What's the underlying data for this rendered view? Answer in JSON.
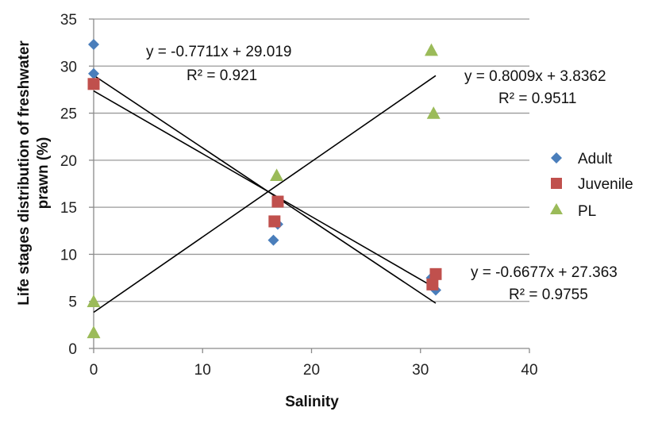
{
  "chart_data": {
    "type": "scatter",
    "xlabel": "Salinity",
    "ylabel": "Life stages distribution of freshwater prawn (%)",
    "ylabel_lines": [
      "Life stages distribution of freshwater",
      "prawn (%)"
    ],
    "xlim": [
      0,
      40
    ],
    "ylim": [
      0,
      35
    ],
    "xticks": [
      0,
      10,
      20,
      30,
      40
    ],
    "yticks": [
      0,
      5,
      10,
      15,
      20,
      25,
      30,
      35
    ],
    "grid": "horizontal",
    "legend_position": "right",
    "series": [
      {
        "name": "Adult",
        "marker": "diamond",
        "color": "#4a7ebb",
        "points": [
          {
            "x": 0,
            "y": 32.3
          },
          {
            "x": 0,
            "y": 29.2
          },
          {
            "x": 16.5,
            "y": 11.5
          },
          {
            "x": 16.9,
            "y": 13.2
          },
          {
            "x": 31.0,
            "y": 7.5
          },
          {
            "x": 31.4,
            "y": 6.2
          }
        ],
        "trendline": {
          "slope": -0.7711,
          "intercept": 29.019,
          "x_range": [
            0,
            31.4
          ],
          "equation": "y = -0.7711x + 29.019",
          "r2": "R² = 0.921"
        }
      },
      {
        "name": "Juvenile",
        "marker": "square",
        "color": "#c0504d",
        "points": [
          {
            "x": 0,
            "y": 28.1
          },
          {
            "x": 16.6,
            "y": 13.5
          },
          {
            "x": 16.9,
            "y": 15.6
          },
          {
            "x": 31.1,
            "y": 6.8
          },
          {
            "x": 31.4,
            "y": 7.9
          }
        ],
        "trendline": {
          "slope": -0.6677,
          "intercept": 27.363,
          "x_range": [
            0,
            31.4
          ],
          "equation": "y = -0.6677x + 27.363",
          "r2": "R² = 0.9755"
        }
      },
      {
        "name": "PL",
        "marker": "triangle",
        "color": "#9bbb59",
        "points": [
          {
            "x": 0,
            "y": 5.0
          },
          {
            "x": 0,
            "y": 1.7
          },
          {
            "x": 16.8,
            "y": 18.4
          },
          {
            "x": 31.0,
            "y": 31.7
          },
          {
            "x": 31.2,
            "y": 25.0
          }
        ],
        "trendline": {
          "slope": 0.8009,
          "intercept": 3.8362,
          "x_range": [
            0,
            31.4
          ],
          "equation": "y = 0.8009x + 3.8362",
          "r2": "R² = 0.9511"
        }
      }
    ],
    "trendline_color": "#000000",
    "gridline_color": "#9a9a9a"
  }
}
